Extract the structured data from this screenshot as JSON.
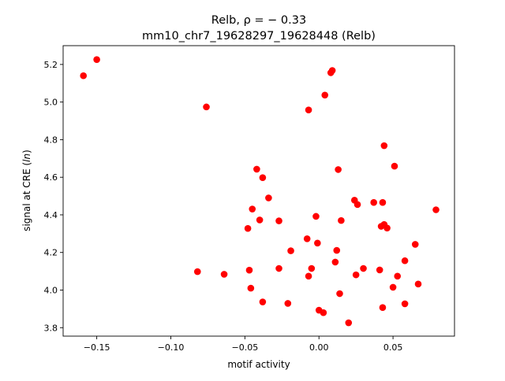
{
  "chart_data": {
    "type": "scatter",
    "title_line1": "Relb, ρ = − 0.33",
    "title_line2": "mm10_chr7_19628297_19628448 (Relb)",
    "xlabel": "motif activity",
    "ylabel_prefix": "signal at CRE (",
    "ylabel_italic": "ln",
    "ylabel_suffix": ")",
    "xlim": [
      -0.1727,
      0.0915
    ],
    "ylim": [
      3.755,
      5.3
    ],
    "x_ticks": [
      {
        "value": -0.15,
        "label": "−0.15"
      },
      {
        "value": -0.1,
        "label": "−0.10"
      },
      {
        "value": -0.05,
        "label": "−0.05"
      },
      {
        "value": 0.0,
        "label": "0.00"
      },
      {
        "value": 0.05,
        "label": "0.05"
      }
    ],
    "y_ticks": [
      {
        "value": 3.8,
        "label": "3.8"
      },
      {
        "value": 4.0,
        "label": "4.0"
      },
      {
        "value": 4.2,
        "label": "4.2"
      },
      {
        "value": 4.4,
        "label": "4.4"
      },
      {
        "value": 4.6,
        "label": "4.6"
      },
      {
        "value": 4.8,
        "label": "4.8"
      },
      {
        "value": 5.0,
        "label": "5.0"
      },
      {
        "value": 5.2,
        "label": "5.2"
      }
    ],
    "grid": false,
    "marker_color": "#ff0000",
    "points": [
      {
        "x": -0.159,
        "y": 5.14
      },
      {
        "x": -0.15,
        "y": 5.226
      },
      {
        "x": -0.076,
        "y": 4.974
      },
      {
        "x": -0.082,
        "y": 4.098
      },
      {
        "x": -0.064,
        "y": 4.084
      },
      {
        "x": -0.047,
        "y": 4.106
      },
      {
        "x": -0.046,
        "y": 4.01
      },
      {
        "x": -0.048,
        "y": 4.328
      },
      {
        "x": -0.045,
        "y": 4.431
      },
      {
        "x": -0.042,
        "y": 4.643
      },
      {
        "x": -0.04,
        "y": 4.373
      },
      {
        "x": -0.038,
        "y": 4.598
      },
      {
        "x": -0.038,
        "y": 3.937
      },
      {
        "x": -0.034,
        "y": 4.49
      },
      {
        "x": -0.027,
        "y": 4.368
      },
      {
        "x": -0.027,
        "y": 4.115
      },
      {
        "x": -0.021,
        "y": 3.929
      },
      {
        "x": -0.019,
        "y": 4.209
      },
      {
        "x": -0.007,
        "y": 4.958
      },
      {
        "x": -0.008,
        "y": 4.273
      },
      {
        "x": -0.007,
        "y": 4.074
      },
      {
        "x": -0.005,
        "y": 4.115
      },
      {
        "x": -0.002,
        "y": 4.392
      },
      {
        "x": -0.001,
        "y": 4.25
      },
      {
        "x": 0.0,
        "y": 3.893
      },
      {
        "x": 0.003,
        "y": 3.88
      },
      {
        "x": 0.004,
        "y": 5.037
      },
      {
        "x": 0.008,
        "y": 5.156
      },
      {
        "x": 0.009,
        "y": 5.168
      },
      {
        "x": 0.011,
        "y": 4.149
      },
      {
        "x": 0.012,
        "y": 4.211
      },
      {
        "x": 0.013,
        "y": 4.641
      },
      {
        "x": 0.014,
        "y": 3.981
      },
      {
        "x": 0.015,
        "y": 4.37
      },
      {
        "x": 0.02,
        "y": 3.826
      },
      {
        "x": 0.024,
        "y": 4.478
      },
      {
        "x": 0.025,
        "y": 4.081
      },
      {
        "x": 0.026,
        "y": 4.455
      },
      {
        "x": 0.03,
        "y": 4.115
      },
      {
        "x": 0.037,
        "y": 4.466
      },
      {
        "x": 0.041,
        "y": 4.107
      },
      {
        "x": 0.042,
        "y": 4.339
      },
      {
        "x": 0.043,
        "y": 4.466
      },
      {
        "x": 0.043,
        "y": 3.907
      },
      {
        "x": 0.044,
        "y": 4.768
      },
      {
        "x": 0.044,
        "y": 4.349
      },
      {
        "x": 0.046,
        "y": 4.33
      },
      {
        "x": 0.05,
        "y": 4.015
      },
      {
        "x": 0.051,
        "y": 4.659
      },
      {
        "x": 0.053,
        "y": 4.074
      },
      {
        "x": 0.058,
        "y": 4.156
      },
      {
        "x": 0.058,
        "y": 3.927
      },
      {
        "x": 0.065,
        "y": 4.243
      },
      {
        "x": 0.067,
        "y": 4.032
      },
      {
        "x": 0.079,
        "y": 4.427
      }
    ]
  }
}
